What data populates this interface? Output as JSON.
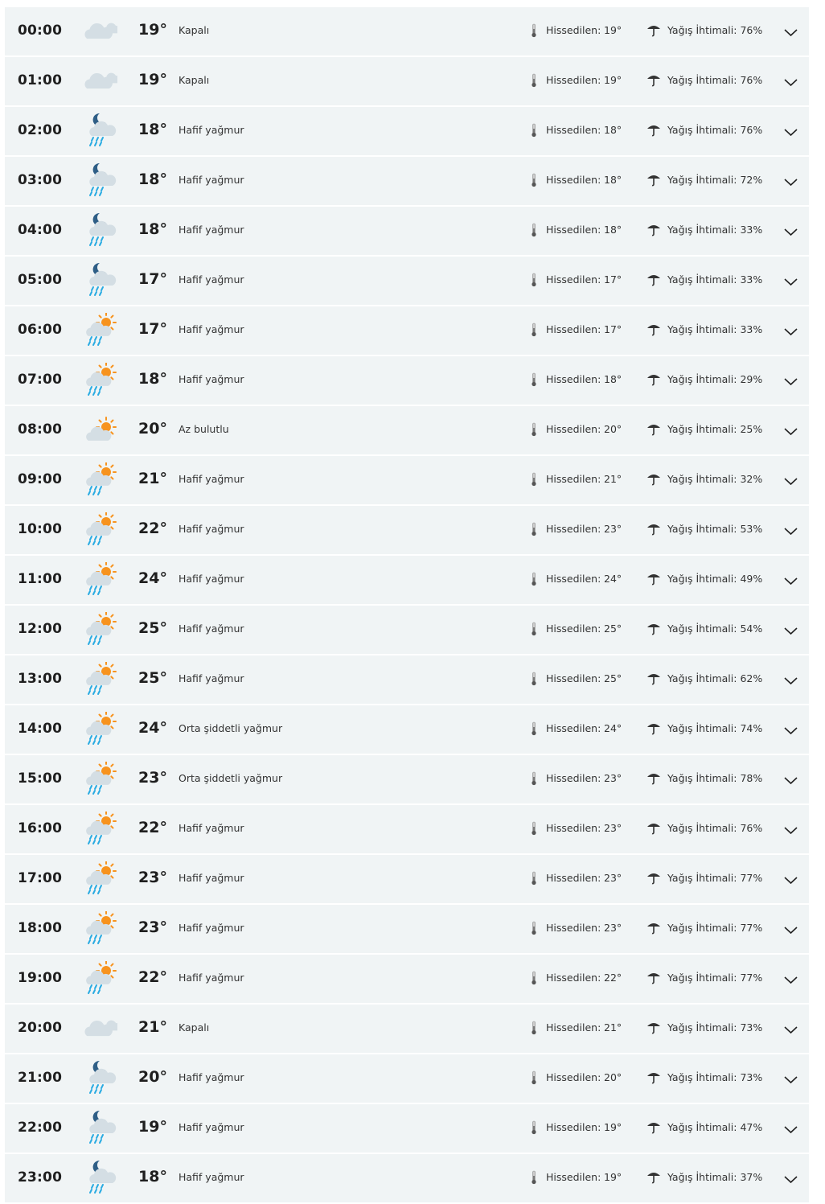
{
  "labels": {
    "feels_like": "Hissedilen:",
    "rain_chance": "Yağış İhtimali:"
  },
  "colors": {
    "row_bg": "#f0f4f5",
    "cloud": "#d4dee4",
    "sun": "#f7931e",
    "moon": "#2e5e86",
    "rain": "#29abe2"
  },
  "hours": [
    {
      "time": "00:00",
      "icon": "cloudy",
      "temp": "19°",
      "desc": "Kapalı",
      "feels": "19°",
      "rain": "76%"
    },
    {
      "time": "01:00",
      "icon": "cloudy",
      "temp": "19°",
      "desc": "Kapalı",
      "feels": "19°",
      "rain": "76%"
    },
    {
      "time": "02:00",
      "icon": "night-rain",
      "temp": "18°",
      "desc": "Hafif yağmur",
      "feels": "18°",
      "rain": "76%"
    },
    {
      "time": "03:00",
      "icon": "night-rain",
      "temp": "18°",
      "desc": "Hafif yağmur",
      "feels": "18°",
      "rain": "72%"
    },
    {
      "time": "04:00",
      "icon": "night-rain",
      "temp": "18°",
      "desc": "Hafif yağmur",
      "feels": "18°",
      "rain": "33%"
    },
    {
      "time": "05:00",
      "icon": "night-rain",
      "temp": "17°",
      "desc": "Hafif yağmur",
      "feels": "17°",
      "rain": "33%"
    },
    {
      "time": "06:00",
      "icon": "day-rain",
      "temp": "17°",
      "desc": "Hafif yağmur",
      "feels": "17°",
      "rain": "33%"
    },
    {
      "time": "07:00",
      "icon": "day-rain",
      "temp": "18°",
      "desc": "Hafif yağmur",
      "feels": "18°",
      "rain": "29%"
    },
    {
      "time": "08:00",
      "icon": "partly-cloudy",
      "temp": "20°",
      "desc": "Az bulutlu",
      "feels": "20°",
      "rain": "25%"
    },
    {
      "time": "09:00",
      "icon": "day-rain",
      "temp": "21°",
      "desc": "Hafif yağmur",
      "feels": "21°",
      "rain": "32%"
    },
    {
      "time": "10:00",
      "icon": "day-rain",
      "temp": "22°",
      "desc": "Hafif yağmur",
      "feels": "23°",
      "rain": "53%"
    },
    {
      "time": "11:00",
      "icon": "day-rain",
      "temp": "24°",
      "desc": "Hafif yağmur",
      "feels": "24°",
      "rain": "49%"
    },
    {
      "time": "12:00",
      "icon": "day-rain",
      "temp": "25°",
      "desc": "Hafif yağmur",
      "feels": "25°",
      "rain": "54%"
    },
    {
      "time": "13:00",
      "icon": "day-rain",
      "temp": "25°",
      "desc": "Hafif yağmur",
      "feels": "25°",
      "rain": "62%"
    },
    {
      "time": "14:00",
      "icon": "day-rain",
      "temp": "24°",
      "desc": "Orta şiddetli yağmur",
      "feels": "24°",
      "rain": "74%"
    },
    {
      "time": "15:00",
      "icon": "day-rain",
      "temp": "23°",
      "desc": "Orta şiddetli yağmur",
      "feels": "23°",
      "rain": "78%"
    },
    {
      "time": "16:00",
      "icon": "day-rain",
      "temp": "22°",
      "desc": "Hafif yağmur",
      "feels": "23°",
      "rain": "76%"
    },
    {
      "time": "17:00",
      "icon": "day-rain",
      "temp": "23°",
      "desc": "Hafif yağmur",
      "feels": "23°",
      "rain": "77%"
    },
    {
      "time": "18:00",
      "icon": "day-rain",
      "temp": "23°",
      "desc": "Hafif yağmur",
      "feels": "23°",
      "rain": "77%"
    },
    {
      "time": "19:00",
      "icon": "day-rain",
      "temp": "22°",
      "desc": "Hafif yağmur",
      "feels": "22°",
      "rain": "77%"
    },
    {
      "time": "20:00",
      "icon": "cloudy",
      "temp": "21°",
      "desc": "Kapalı",
      "feels": "21°",
      "rain": "73%"
    },
    {
      "time": "21:00",
      "icon": "night-rain",
      "temp": "20°",
      "desc": "Hafif yağmur",
      "feels": "20°",
      "rain": "73%"
    },
    {
      "time": "22:00",
      "icon": "night-rain",
      "temp": "19°",
      "desc": "Hafif yağmur",
      "feels": "19°",
      "rain": "47%"
    },
    {
      "time": "23:00",
      "icon": "night-rain",
      "temp": "18°",
      "desc": "Hafif yağmur",
      "feels": "19°",
      "rain": "37%"
    }
  ]
}
